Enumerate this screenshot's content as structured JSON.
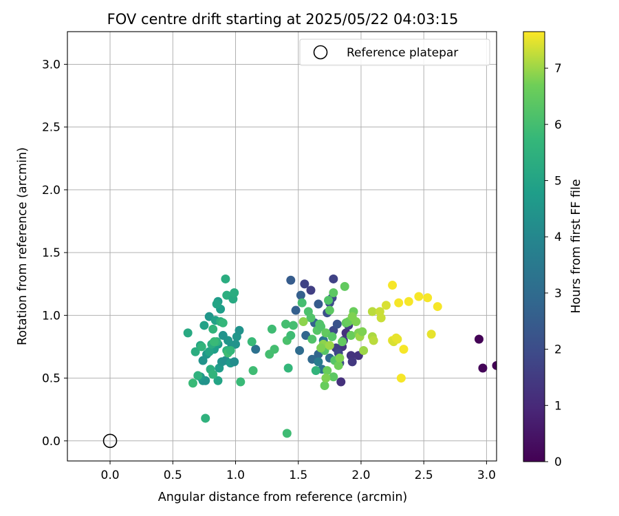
{
  "chart_data": {
    "type": "scatter",
    "title": "FOV centre drift starting at 2025/05/22 04:03:15",
    "xlabel": "Angular distance from reference (arcmin)",
    "ylabel": "Rotation from reference (arcmin)",
    "xlim": [
      -0.34,
      3.08
    ],
    "ylim": [
      -0.16,
      3.26
    ],
    "xticks": [
      "0.0",
      "0.5",
      "1.0",
      "1.5",
      "2.0",
      "2.5",
      "3.0"
    ],
    "yticks": [
      "0.0",
      "0.5",
      "1.0",
      "1.5",
      "2.0",
      "2.5",
      "3.0"
    ],
    "grid": true,
    "legend": {
      "position": "top-right",
      "entries": [
        "Reference platepar"
      ]
    },
    "colorbar": {
      "label": "Hours from first FF file",
      "range": [
        0,
        7.65
      ],
      "colormap": "viridis",
      "ticks": [
        "0",
        "1",
        "2",
        "3",
        "4",
        "5",
        "6",
        "7"
      ]
    },
    "reference": {
      "x": 0.0,
      "y": 0.0
    },
    "points": [
      [
        2.94,
        0.81,
        0.05
      ],
      [
        2.97,
        0.58,
        0.1
      ],
      [
        3.08,
        0.6,
        0.05
      ],
      [
        1.84,
        0.47,
        1.2
      ],
      [
        1.85,
        0.75,
        1.3
      ],
      [
        1.88,
        0.86,
        1.2
      ],
      [
        1.92,
        0.68,
        1.3
      ],
      [
        1.93,
        0.63,
        1.4
      ],
      [
        1.98,
        0.68,
        1.3
      ],
      [
        1.9,
        0.92,
        1.5
      ],
      [
        1.8,
        0.74,
        1.6
      ],
      [
        1.78,
        1.29,
        1.7
      ],
      [
        1.55,
        1.25,
        1.7
      ],
      [
        1.6,
        1.2,
        1.6
      ],
      [
        1.75,
        1.1,
        2.0
      ],
      [
        1.73,
        1.02,
        2.1
      ],
      [
        1.78,
        0.88,
        1.9
      ],
      [
        1.82,
        0.7,
        1.8
      ],
      [
        1.83,
        0.62,
        2.0
      ],
      [
        1.86,
        0.8,
        1.5
      ],
      [
        1.81,
        0.93,
        2.2
      ],
      [
        1.77,
        1.14,
        1.9
      ],
      [
        1.44,
        1.28,
        2.5
      ],
      [
        1.52,
        1.16,
        2.6
      ],
      [
        1.48,
        1.04,
        2.6
      ],
      [
        1.66,
        1.09,
        2.5
      ],
      [
        1.63,
        0.94,
        2.7
      ],
      [
        1.66,
        0.69,
        2.8
      ],
      [
        1.61,
        0.65,
        2.9
      ],
      [
        1.56,
        0.84,
        2.8
      ],
      [
        1.51,
        0.72,
        3.0
      ],
      [
        1.75,
        0.66,
        2.9
      ],
      [
        1.69,
        0.57,
        3.2
      ],
      [
        1.16,
        0.73,
        3.2
      ],
      [
        1.64,
        0.56,
        5.6
      ],
      [
        1.66,
        0.63,
        3.6
      ],
      [
        1.7,
        0.8,
        3.4
      ],
      [
        1.72,
        0.75,
        3.8
      ],
      [
        0.74,
        0.48,
        4.5
      ],
      [
        0.76,
        0.48,
        4.4
      ],
      [
        0.86,
        0.48,
        5.0
      ],
      [
        0.72,
        0.51,
        4.6
      ],
      [
        0.7,
        0.52,
        5.5
      ],
      [
        0.66,
        0.46,
        5.8
      ],
      [
        0.74,
        0.64,
        4.4
      ],
      [
        0.77,
        0.69,
        4.5
      ],
      [
        0.8,
        0.57,
        5.4
      ],
      [
        0.82,
        0.53,
        5.6
      ],
      [
        0.87,
        0.58,
        4.7
      ],
      [
        0.89,
        0.63,
        4.4
      ],
      [
        0.92,
        0.64,
        4.3
      ],
      [
        0.96,
        0.62,
        4.6
      ],
      [
        0.99,
        0.63,
        4.2
      ],
      [
        0.97,
        0.76,
        4.3
      ],
      [
        1.0,
        0.77,
        4.4
      ],
      [
        1.01,
        0.83,
        4.5
      ],
      [
        1.03,
        0.88,
        4.4
      ],
      [
        0.94,
        0.8,
        4.5
      ],
      [
        0.9,
        0.84,
        4.4
      ],
      [
        0.86,
        0.77,
        4.6
      ],
      [
        0.83,
        0.73,
        4.8
      ],
      [
        0.79,
        0.71,
        5.0
      ],
      [
        0.72,
        0.76,
        5.1
      ],
      [
        0.75,
        0.92,
        4.9
      ],
      [
        0.79,
        0.99,
        4.5
      ],
      [
        0.84,
        0.96,
        4.9
      ],
      [
        0.88,
        1.05,
        4.8
      ],
      [
        0.86,
        1.11,
        4.7
      ],
      [
        0.85,
        1.09,
        5.0
      ],
      [
        0.93,
        1.16,
        5.4
      ],
      [
        0.98,
        1.13,
        5.2
      ],
      [
        0.99,
        1.18,
        5.3
      ],
      [
        0.92,
        1.29,
        5.3
      ],
      [
        0.62,
        0.86,
        5.2
      ],
      [
        0.68,
        0.71,
        5.3
      ],
      [
        0.73,
        0.75,
        5.6
      ],
      [
        0.81,
        0.77,
        5.3
      ],
      [
        0.85,
        0.79,
        5.5
      ],
      [
        0.88,
        0.95,
        5.4
      ],
      [
        0.9,
        0.94,
        5.7
      ],
      [
        0.82,
        0.89,
        5.6
      ],
      [
        0.93,
        0.72,
        5.5
      ],
      [
        0.83,
        0.79,
        5.8
      ],
      [
        0.94,
        0.7,
        5.9
      ],
      [
        0.96,
        0.72,
        5.7
      ],
      [
        0.76,
        0.18,
        5.5
      ],
      [
        1.04,
        0.47,
        5.8
      ],
      [
        1.13,
        0.79,
        5.8
      ],
      [
        1.14,
        0.56,
        5.9
      ],
      [
        1.27,
        0.69,
        6.0
      ],
      [
        1.29,
        0.89,
        5.9
      ],
      [
        1.31,
        0.73,
        6.0
      ],
      [
        1.41,
        0.8,
        6.1
      ],
      [
        1.44,
        0.84,
        5.9
      ],
      [
        1.4,
        0.93,
        6.0
      ],
      [
        1.42,
        0.58,
        5.7
      ],
      [
        1.41,
        0.06,
        5.9
      ],
      [
        1.46,
        0.92,
        6.0
      ],
      [
        1.53,
        1.1,
        6.0
      ],
      [
        1.58,
        1.03,
        6.1
      ],
      [
        1.6,
        0.98,
        6.2
      ],
      [
        1.61,
        0.81,
        6.2
      ],
      [
        1.65,
        0.88,
        6.3
      ],
      [
        1.67,
        0.93,
        6.2
      ],
      [
        1.68,
        0.91,
        6.2
      ],
      [
        1.71,
        0.72,
        6.3
      ],
      [
        1.74,
        1.12,
        6.2
      ],
      [
        1.78,
        1.18,
        6.4
      ],
      [
        1.75,
        1.04,
        6.4
      ],
      [
        1.72,
        0.86,
        6.5
      ],
      [
        1.77,
        0.83,
        6.3
      ],
      [
        1.79,
        0.64,
        6.3
      ],
      [
        1.78,
        0.51,
        6.4
      ],
      [
        1.73,
        0.56,
        6.6
      ],
      [
        1.71,
        0.44,
        6.6
      ],
      [
        1.72,
        0.5,
        6.8
      ],
      [
        1.82,
        0.6,
        6.7
      ],
      [
        1.83,
        0.66,
        6.8
      ],
      [
        1.85,
        0.79,
        6.5
      ],
      [
        1.87,
        1.23,
        6.5
      ],
      [
        1.88,
        0.94,
        6.5
      ],
      [
        1.9,
        0.95,
        6.6
      ],
      [
        1.92,
        0.84,
        6.6
      ],
      [
        1.94,
        1.03,
        6.6
      ],
      [
        1.93,
        0.99,
        6.8
      ],
      [
        1.96,
        0.95,
        6.8
      ],
      [
        1.98,
        0.86,
        6.8
      ],
      [
        1.99,
        0.83,
        7.0
      ],
      [
        2.01,
        0.87,
        6.8
      ],
      [
        2.02,
        0.72,
        7.0
      ],
      [
        1.54,
        0.95,
        6.9
      ],
      [
        1.7,
        0.77,
        6.9
      ],
      [
        1.75,
        0.76,
        7.0
      ],
      [
        1.68,
        0.74,
        6.8
      ],
      [
        2.09,
        0.83,
        7.1
      ],
      [
        2.1,
        0.8,
        7.2
      ],
      [
        2.09,
        1.03,
        7.2
      ],
      [
        2.15,
        1.03,
        7.3
      ],
      [
        2.16,
        0.98,
        7.3
      ],
      [
        2.2,
        1.08,
        7.4
      ],
      [
        2.25,
        0.8,
        7.5
      ],
      [
        2.26,
        0.79,
        7.4
      ],
      [
        2.28,
        0.82,
        7.5
      ],
      [
        2.29,
        0.81,
        7.5
      ],
      [
        2.25,
        1.24,
        7.6
      ],
      [
        2.3,
        1.1,
        7.6
      ],
      [
        2.34,
        0.73,
        7.6
      ],
      [
        2.32,
        0.5,
        7.6
      ],
      [
        2.38,
        1.11,
        7.6
      ],
      [
        2.46,
        1.15,
        7.6
      ],
      [
        2.53,
        1.14,
        7.6
      ],
      [
        2.56,
        0.85,
        7.5
      ],
      [
        2.61,
        1.07,
        7.6
      ]
    ]
  }
}
